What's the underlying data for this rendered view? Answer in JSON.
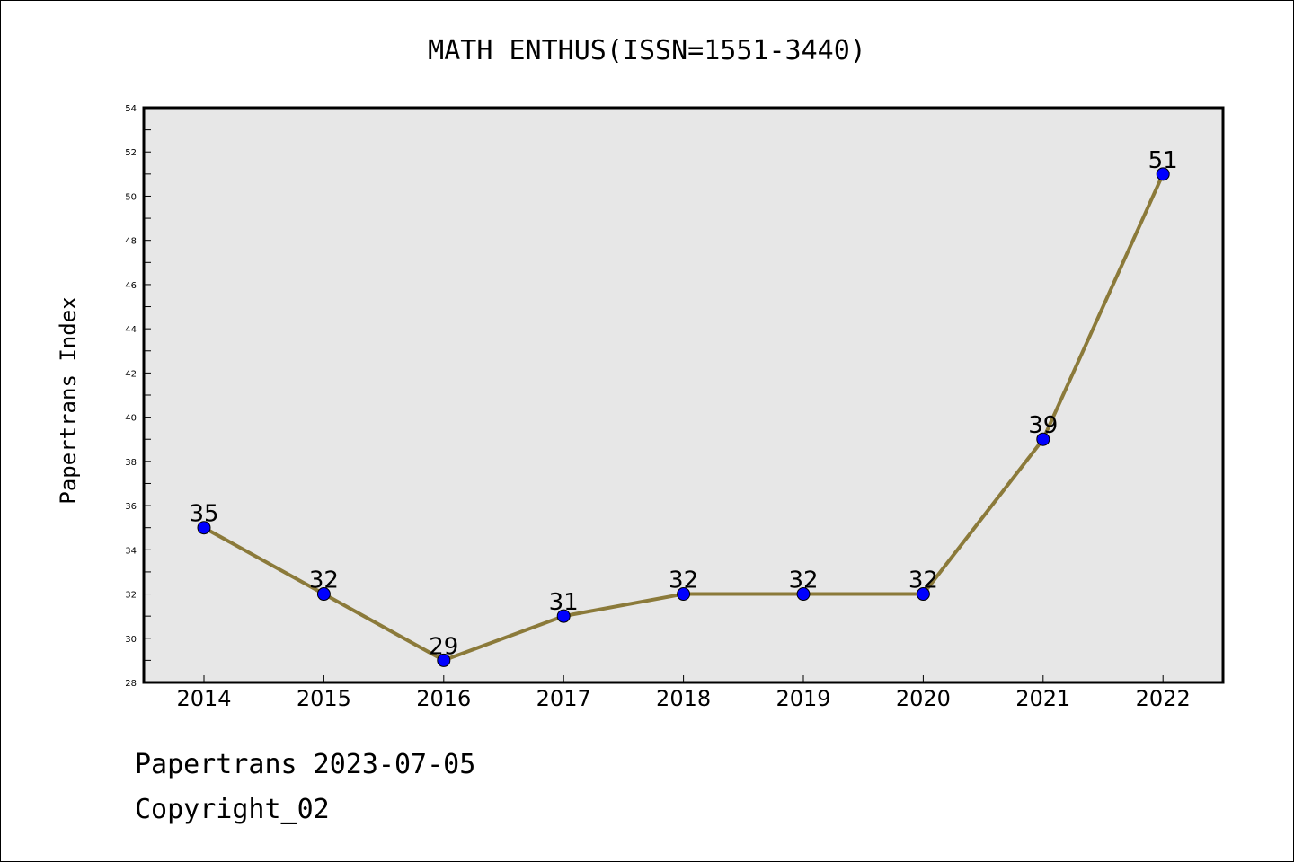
{
  "chart_data": {
    "type": "line",
    "title": "MATH ENTHUS(ISSN=1551-3440)",
    "xlabel": "",
    "ylabel": "Papertrans Index",
    "categories": [
      "2014",
      "2015",
      "2016",
      "2017",
      "2018",
      "2019",
      "2020",
      "2021",
      "2022"
    ],
    "series": [
      {
        "values": [
          35,
          32,
          29,
          31,
          32,
          32,
          32,
          39,
          51
        ]
      }
    ],
    "ylim": [
      28,
      54
    ],
    "yticks": [
      "28",
      "30",
      "32",
      "34",
      "36",
      "38",
      "40",
      "42",
      "44",
      "46",
      "48",
      "50",
      "52",
      "54"
    ],
    "grid": false,
    "colors": {
      "line": "#8b7a3a",
      "marker": "#0000ff",
      "plot_bg": "#e7e7e7"
    }
  },
  "footer": {
    "date_line": "Papertrans 2023-07-05",
    "copyright": "Copyright_02"
  }
}
